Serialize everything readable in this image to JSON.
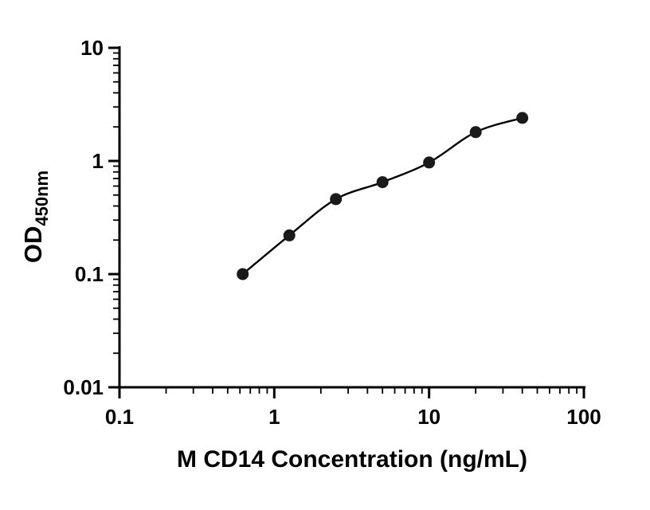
{
  "chart_data": {
    "type": "scatter",
    "title": "",
    "xlabel": "M CD14 Concentration (ng/mL)",
    "ylabel_main": "OD",
    "ylabel_sub": "450nm",
    "x": [
      0.625,
      1.25,
      2.5,
      5,
      10,
      20,
      40
    ],
    "y": [
      0.1,
      0.22,
      0.46,
      0.65,
      0.97,
      1.8,
      2.4
    ],
    "xscale": "log",
    "yscale": "log",
    "xlim": [
      0.1,
      100
    ],
    "ylim": [
      0.01,
      10
    ],
    "x_ticks": [
      0.1,
      1,
      10,
      100
    ],
    "x_tick_labels": [
      "0.1",
      "1",
      "10",
      "100"
    ],
    "y_ticks": [
      0.01,
      0.1,
      1,
      10
    ],
    "y_tick_labels": [
      "0.01",
      "0.1",
      "1",
      "10"
    ],
    "has_fit_curve": true,
    "grid": false,
    "legend": null,
    "marker_color": "#1a1a1a",
    "line_color": "#000000",
    "axis_color": "#000000",
    "background_color": "#ffffff"
  }
}
